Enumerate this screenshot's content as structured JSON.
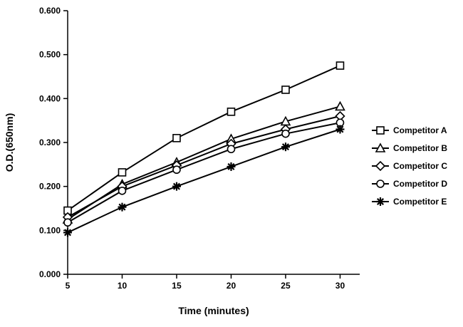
{
  "chart_data": {
    "type": "line",
    "title": "",
    "xlabel": "Time (minutes)",
    "ylabel": "O.D.(650nm)",
    "x": [
      5,
      10,
      15,
      20,
      25,
      30
    ],
    "xticks": [
      "5",
      "10",
      "15",
      "20",
      "25",
      "30"
    ],
    "yticks": [
      "0.000",
      "0.100",
      "0.200",
      "0.300",
      "0.400",
      "0.500",
      "0.600"
    ],
    "xlim": [
      5,
      31.8
    ],
    "ylim": [
      0,
      0.6
    ],
    "grid": false,
    "legend_position": "right",
    "line_color": "#000000",
    "background_color": "#ffffff",
    "series": [
      {
        "name": "Competitor A",
        "marker": "square",
        "values": [
          0.145,
          0.232,
          0.31,
          0.37,
          0.42,
          0.475
        ]
      },
      {
        "name": "Competitor B",
        "marker": "triangle",
        "values": [
          0.125,
          0.205,
          0.255,
          0.308,
          0.348,
          0.382
        ]
      },
      {
        "name": "Competitor C",
        "marker": "diamond",
        "values": [
          0.13,
          0.2,
          0.248,
          0.297,
          0.33,
          0.36
        ]
      },
      {
        "name": "Competitor D",
        "marker": "circle",
        "values": [
          0.118,
          0.19,
          0.238,
          0.285,
          0.32,
          0.345
        ]
      },
      {
        "name": "Competitor E",
        "marker": "asterisk",
        "values": [
          0.095,
          0.153,
          0.2,
          0.245,
          0.29,
          0.33
        ]
      }
    ]
  }
}
